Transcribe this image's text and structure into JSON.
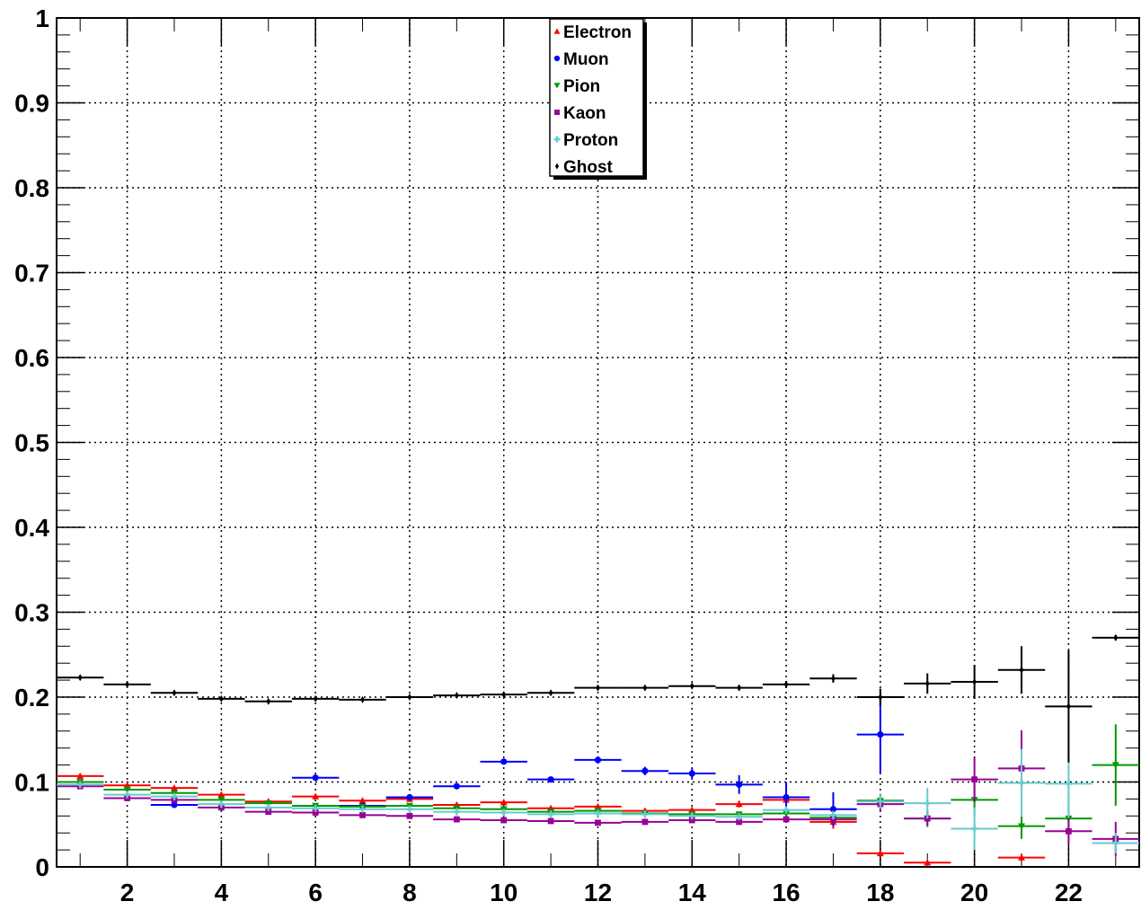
{
  "chart_data": {
    "type": "scatter",
    "title": "",
    "xlabel": "",
    "ylabel": "",
    "xlim": [
      0.5,
      23.5
    ],
    "ylim": [
      0,
      1
    ],
    "grid": true,
    "legend_position": "top-center",
    "x_tick_labels": [
      "2",
      "4",
      "6",
      "8",
      "10",
      "12",
      "14",
      "16",
      "18",
      "20",
      "22"
    ],
    "y_tick_labels": [
      "0",
      "0.1",
      "0.2",
      "0.3",
      "0.4",
      "0.5",
      "0.6",
      "0.7",
      "0.8",
      "0.9",
      "1"
    ],
    "x": [
      1,
      2,
      3,
      4,
      5,
      6,
      7,
      8,
      9,
      10,
      11,
      12,
      13,
      14,
      15,
      16,
      17,
      18,
      19,
      20,
      21,
      22,
      23
    ],
    "series": [
      {
        "name": "Electron",
        "color": "#ff0000",
        "marker": "triangle-up",
        "values": [
          0.107,
          0.096,
          0.093,
          0.085,
          0.077,
          0.083,
          0.078,
          0.08,
          0.073,
          0.076,
          0.069,
          0.071,
          0.066,
          0.067,
          0.074,
          0.079,
          0.053,
          0.016,
          0.005,
          null,
          0.011,
          null,
          null
        ],
        "errors": [
          0.003,
          0.003,
          0.003,
          0.003,
          0.003,
          0.003,
          0.003,
          0.003,
          0.003,
          0.003,
          0.003,
          0.003,
          0.003,
          0.003,
          0.004,
          0.005,
          0.008,
          0.004,
          0.003,
          null,
          0.004,
          null,
          null
        ]
      },
      {
        "name": "Muon",
        "color": "#0000ff",
        "marker": "circle",
        "values": [
          null,
          null,
          0.073,
          null,
          null,
          0.105,
          0.072,
          0.082,
          0.095,
          0.124,
          0.103,
          0.126,
          0.113,
          0.11,
          0.097,
          0.082,
          0.068,
          0.156,
          null,
          null,
          null,
          null,
          null
        ],
        "errors": [
          null,
          null,
          0.003,
          null,
          null,
          0.003,
          0.003,
          0.003,
          0.003,
          0.003,
          0.003,
          0.004,
          0.005,
          0.006,
          0.011,
          0.018,
          0.02,
          0.045,
          null,
          null,
          null,
          null,
          null
        ]
      },
      {
        "name": "Pion",
        "color": "#009900",
        "marker": "triangle-down",
        "values": [
          0.1,
          0.091,
          0.087,
          0.079,
          0.075,
          0.072,
          0.071,
          0.072,
          0.069,
          0.068,
          0.065,
          0.066,
          0.063,
          0.062,
          0.062,
          0.063,
          0.058,
          0.078,
          0.057,
          0.079,
          0.048,
          0.057,
          0.12
        ],
        "errors": [
          0.002,
          0.002,
          0.002,
          0.002,
          0.002,
          0.002,
          0.002,
          0.002,
          0.002,
          0.002,
          0.002,
          0.002,
          0.002,
          0.002,
          0.003,
          0.004,
          0.005,
          0.008,
          0.01,
          0.02,
          0.015,
          0.03,
          0.048
        ]
      },
      {
        "name": "Kaon",
        "color": "#990099",
        "marker": "square",
        "values": [
          0.095,
          0.081,
          0.079,
          0.07,
          0.065,
          0.064,
          0.061,
          0.06,
          0.056,
          0.055,
          0.054,
          0.052,
          0.053,
          0.055,
          0.053,
          0.056,
          0.056,
          0.074,
          0.057,
          0.103,
          0.116,
          0.042,
          0.033
        ],
        "errors": [
          0.003,
          0.002,
          0.002,
          0.002,
          0.002,
          0.002,
          0.002,
          0.002,
          0.002,
          0.002,
          0.002,
          0.002,
          0.002,
          0.002,
          0.003,
          0.004,
          0.005,
          0.008,
          0.008,
          0.026,
          0.045,
          0.015,
          0.02
        ]
      },
      {
        "name": "Proton",
        "color": "#66cccc",
        "marker": "plus",
        "values": [
          0.097,
          0.085,
          0.083,
          0.074,
          0.07,
          0.069,
          0.068,
          0.068,
          0.065,
          0.064,
          0.062,
          0.063,
          0.062,
          0.06,
          0.059,
          0.067,
          0.061,
          0.077,
          0.075,
          0.045,
          0.099,
          0.098,
          0.028
        ],
        "errors": [
          0.002,
          0.002,
          0.002,
          0.002,
          0.002,
          0.002,
          0.002,
          0.002,
          0.002,
          0.002,
          0.002,
          0.002,
          0.002,
          0.002,
          0.003,
          0.004,
          0.005,
          0.008,
          0.018,
          0.025,
          0.04,
          0.04,
          0.012
        ]
      },
      {
        "name": "Ghost",
        "color": "#000000",
        "marker": "diamond",
        "values": [
          0.223,
          0.215,
          0.205,
          0.198,
          0.195,
          0.198,
          0.197,
          0.2,
          0.202,
          0.203,
          0.205,
          0.211,
          0.211,
          0.213,
          0.211,
          0.215,
          0.222,
          0.2,
          0.216,
          0.218,
          0.232,
          0.189,
          0.27
        ],
        "errors": [
          0.002,
          0.002,
          0.002,
          0.002,
          0.002,
          0.002,
          0.002,
          0.002,
          0.002,
          0.002,
          0.002,
          0.002,
          0.002,
          0.003,
          0.003,
          0.004,
          0.005,
          0.01,
          0.012,
          0.02,
          0.028,
          0.066,
          0.003
        ]
      }
    ]
  }
}
